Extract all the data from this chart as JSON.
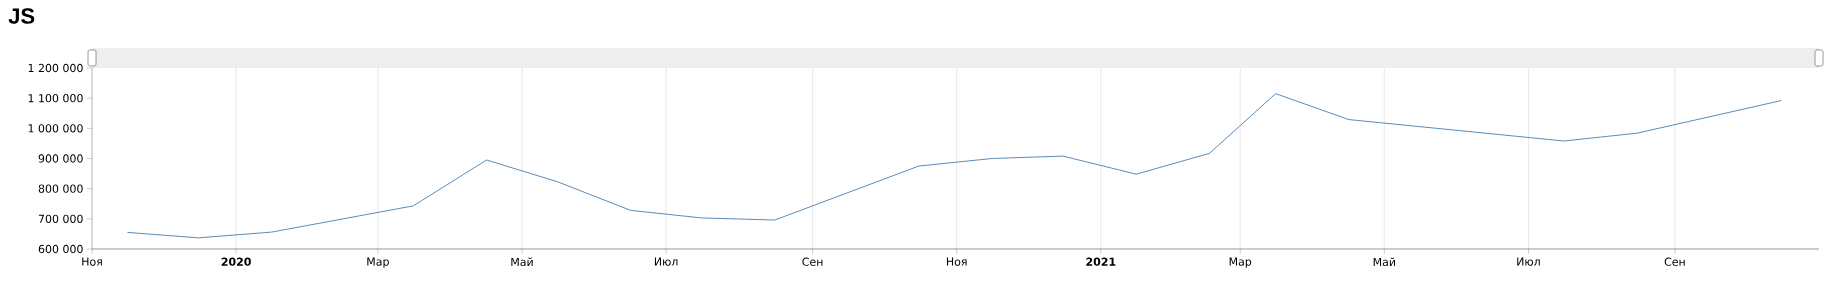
{
  "chart_data": {
    "type": "line",
    "title": "JS",
    "x": [
      "2019-11-16",
      "2019-12-16",
      "2020-01-16",
      "2020-03-16",
      "2020-04-16",
      "2020-05-16",
      "2020-06-16",
      "2020-07-16",
      "2020-08-16",
      "2020-10-16",
      "2020-11-16",
      "2020-12-16",
      "2021-01-16",
      "2021-02-16",
      "2021-03-16",
      "2021-04-16",
      "2021-07-16",
      "2021-08-16",
      "2021-10-16"
    ],
    "series": [
      {
        "color": "#4a7fb0",
        "values": [
          655000,
          637000,
          656000,
          743000,
          895000,
          823000,
          728000,
          703000,
          696000,
          875000,
          900000,
          908000,
          848000,
          917000,
          1115000,
          1029000,
          958000,
          984000,
          1092000
        ]
      }
    ],
    "xlim": [
      "2019-11-01",
      "2021-11-01"
    ],
    "xticks": [
      {
        "value": "2019-11-01",
        "label": "Ноя"
      },
      {
        "value": "2020-01-01",
        "label": "2020"
      },
      {
        "value": "2020-03-01",
        "label": "Мар"
      },
      {
        "value": "2020-05-01",
        "label": "Май"
      },
      {
        "value": "2020-07-01",
        "label": "Июл"
      },
      {
        "value": "2020-09-01",
        "label": "Сен"
      },
      {
        "value": "2020-11-01",
        "label": "Ноя"
      },
      {
        "value": "2021-01-01",
        "label": "2021"
      },
      {
        "value": "2021-03-01",
        "label": "Мар"
      },
      {
        "value": "2021-05-01",
        "label": "Май"
      },
      {
        "value": "2021-07-01",
        "label": "Июл"
      },
      {
        "value": "2021-09-01",
        "label": "Сен"
      }
    ],
    "ylim": [
      600000,
      1200000
    ],
    "yticks": [
      {
        "value": 600000,
        "label": "600 000"
      },
      {
        "value": 700000,
        "label": "700 000"
      },
      {
        "value": 800000,
        "label": "800 000"
      },
      {
        "value": 900000,
        "label": "900 000"
      },
      {
        "value": 1000000,
        "label": "1 000 000"
      },
      {
        "value": 1100000,
        "label": "1 100 000"
      },
      {
        "value": 1200000,
        "label": "1 200 000"
      }
    ],
    "grid": "x",
    "marker": "none",
    "line_style": "solid"
  }
}
